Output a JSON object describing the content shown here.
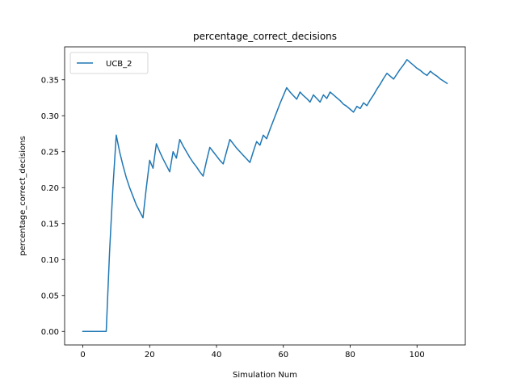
{
  "chart_data": {
    "type": "line",
    "title": "percentage_correct_decisions",
    "xlabel": "Simulation Num",
    "ylabel": "percentage_correct_decisions",
    "xlim": [
      -5.45,
      114.45
    ],
    "ylim": [
      -0.0188,
      0.3958
    ],
    "xticks": [
      0,
      20,
      40,
      60,
      80,
      100
    ],
    "yticks": [
      0.0,
      0.05,
      0.1,
      0.15,
      0.2,
      0.25,
      0.3,
      0.35
    ],
    "xtick_labels": [
      "0",
      "20",
      "40",
      "60",
      "80",
      "100"
    ],
    "ytick_labels": [
      "0.00",
      "0.05",
      "0.10",
      "0.15",
      "0.20",
      "0.25",
      "0.30",
      "0.35"
    ],
    "grid": false,
    "legend_position": "upper left",
    "series": [
      {
        "name": "UCB_2",
        "color": "#1f77b4",
        "x": [
          0,
          1,
          2,
          3,
          4,
          5,
          6,
          7,
          8,
          9,
          10,
          11,
          12,
          13,
          14,
          15,
          16,
          17,
          18,
          19,
          20,
          21,
          22,
          23,
          24,
          25,
          26,
          27,
          28,
          29,
          30,
          31,
          32,
          33,
          34,
          35,
          36,
          37,
          38,
          39,
          40,
          41,
          42,
          43,
          44,
          45,
          46,
          47,
          48,
          49,
          50,
          51,
          52,
          53,
          54,
          55,
          56,
          57,
          58,
          59,
          60,
          61,
          62,
          63,
          64,
          65,
          66,
          67,
          68,
          69,
          70,
          71,
          72,
          73,
          74,
          75,
          76,
          77,
          78,
          79,
          80,
          81,
          82,
          83,
          84,
          85,
          86,
          87,
          88,
          89,
          90,
          91,
          92,
          93,
          94,
          95,
          96,
          97,
          98,
          99,
          100,
          101,
          102,
          103,
          104,
          105,
          106,
          107,
          108,
          109
        ],
        "values": [
          0,
          0,
          0,
          0,
          0,
          0,
          0,
          0,
          0.111,
          0.2,
          0.273,
          0.25,
          0.231,
          0.214,
          0.2,
          0.188,
          0.176,
          0.167,
          0.158,
          0.2,
          0.238,
          0.227,
          0.261,
          0.25,
          0.24,
          0.231,
          0.222,
          0.25,
          0.241,
          0.267,
          0.258,
          0.25,
          0.242,
          0.235,
          0.229,
          0.222,
          0.216,
          0.237,
          0.256,
          0.25,
          0.244,
          0.238,
          0.233,
          0.25,
          0.267,
          0.261,
          0.255,
          0.25,
          0.245,
          0.24,
          0.235,
          0.25,
          0.264,
          0.259,
          0.273,
          0.268,
          0.281,
          0.293,
          0.305,
          0.317,
          0.328,
          0.339,
          0.333,
          0.328,
          0.323,
          0.333,
          0.328,
          0.324,
          0.319,
          0.329,
          0.324,
          0.319,
          0.329,
          0.324,
          0.333,
          0.329,
          0.325,
          0.321,
          0.316,
          0.313,
          0.309,
          0.305,
          0.313,
          0.31,
          0.318,
          0.314,
          0.322,
          0.329,
          0.337,
          0.344,
          0.352,
          0.359,
          0.355,
          0.351,
          0.358,
          0.365,
          0.371,
          0.378,
          0.374,
          0.37,
          0.366,
          0.363,
          0.359,
          0.356,
          0.362,
          0.358,
          0.355,
          0.351,
          0.348,
          0.345
        ]
      }
    ]
  }
}
